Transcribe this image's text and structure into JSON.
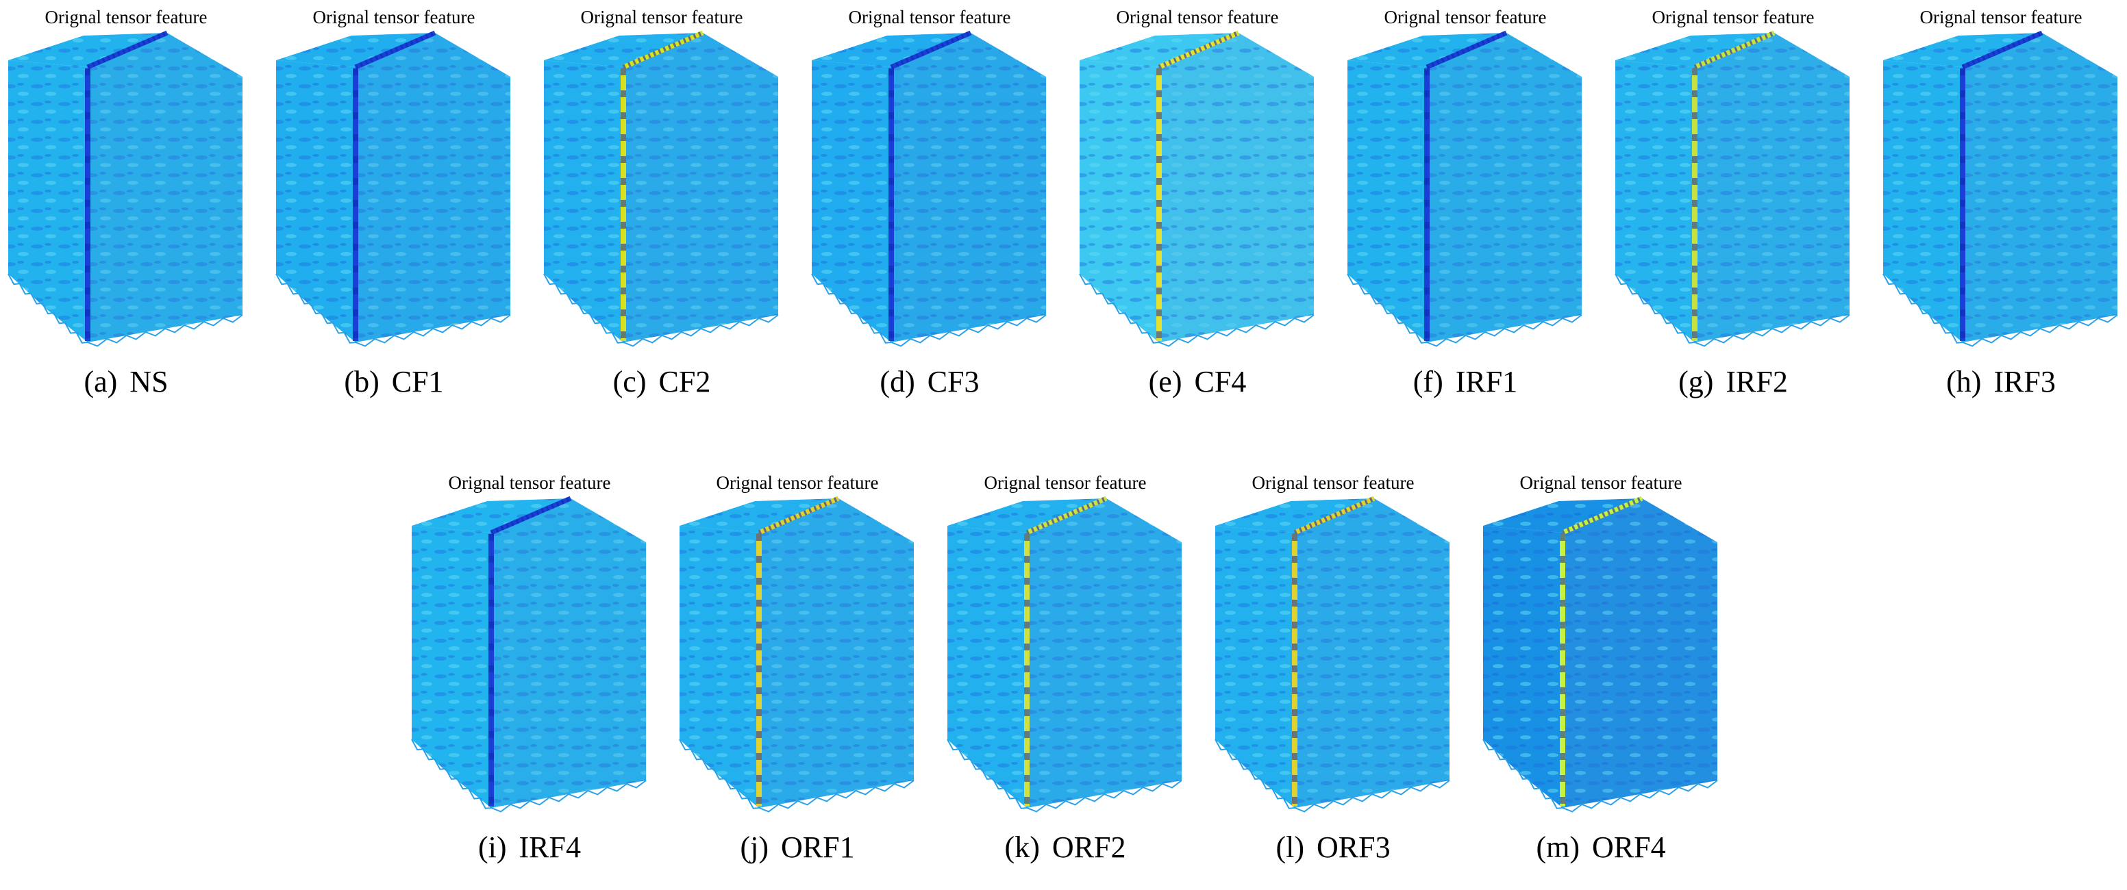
{
  "panels": [
    {
      "title": "Orignal tensor feature",
      "letter": "(a)",
      "label": "NS",
      "ridge": "#1a3fd6",
      "tone": "#22b2ee"
    },
    {
      "title": "Orignal tensor feature",
      "letter": "(b)",
      "label": "CF1",
      "ridge": "#1a3fd6",
      "tone": "#20aeee"
    },
    {
      "title": "Orignal tensor feature",
      "letter": "(c)",
      "label": "CF2",
      "ridge": "#d8e020",
      "tone": "#22b0ee"
    },
    {
      "title": "Orignal tensor feature",
      "letter": "(d)",
      "label": "CF3",
      "ridge": "#1a3fd6",
      "tone": "#20acee"
    },
    {
      "title": "Orignal tensor feature",
      "letter": "(e)",
      "label": "CF4",
      "ridge": "#e8e030",
      "tone": "#3cc8f0"
    },
    {
      "title": "Orignal tensor feature",
      "letter": "(f)",
      "label": "IRF1",
      "ridge": "#1a3fd6",
      "tone": "#22b2ee"
    },
    {
      "title": "Orignal tensor feature",
      "letter": "(g)",
      "label": "IRF2",
      "ridge": "#c8e040",
      "tone": "#26b4ee"
    },
    {
      "title": "Orignal tensor feature",
      "letter": "(h)",
      "label": "IRF3",
      "ridge": "#1a3fd6",
      "tone": "#22b2ee"
    },
    {
      "title": "Orignal tensor feature",
      "letter": "(i)",
      "label": "IRF4",
      "ridge": "#1a3fd6",
      "tone": "#22b4ee"
    },
    {
      "title": "Orignal tensor feature",
      "letter": "(j)",
      "label": "ORF1",
      "ridge": "#e0d030",
      "tone": "#22b0ee"
    },
    {
      "title": "Orignal tensor feature",
      "letter": "(k)",
      "label": "ORF2",
      "ridge": "#d0e040",
      "tone": "#22b0ee"
    },
    {
      "title": "Orignal tensor feature",
      "letter": "(l)",
      "label": "ORF3",
      "ridge": "#e0d030",
      "tone": "#22b0ee"
    },
    {
      "title": "Orignal tensor feature",
      "letter": "(m)",
      "label": "ORF4",
      "ridge": "#c8f040",
      "tone": "#1890e4"
    }
  ]
}
